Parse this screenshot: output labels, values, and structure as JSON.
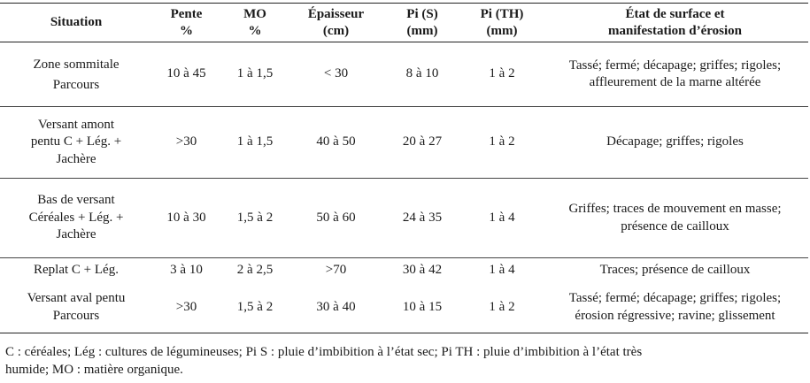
{
  "headers": {
    "situation": "Situation",
    "pente_1": "Pente",
    "pente_2": "%",
    "mo_1": "MO",
    "mo_2": "%",
    "epaisseur_1": "Épaisseur",
    "epaisseur_2": "(cm)",
    "pis_1": "Pi (S)",
    "pis_2": "(mm)",
    "pith_1": "Pi (TH)",
    "pith_2": "(mm)",
    "etat_1": "État de surface et",
    "etat_2": "manifestation d’érosion"
  },
  "rows": [
    {
      "sit_1": "Zone sommitale",
      "sit_2": "Parcours",
      "sit_3": "",
      "pente": "10 à 45",
      "mo": "1 à 1,5",
      "epaisseur": "< 30",
      "pis": "8 à 10",
      "pith": "1 à 2",
      "etat_1": "Tassé; fermé; décapage; griffes; rigoles;",
      "etat_2": "affleurement de la marne altérée"
    },
    {
      "sit_1": "Versant amont",
      "sit_2": "pentu C + Lég. +",
      "sit_3": "Jachère",
      "pente": ">30",
      "mo": "1 à 1,5",
      "epaisseur": "40 à 50",
      "pis": "20 à 27",
      "pith": "1 à 2",
      "etat_1": "Décapage; griffes; rigoles",
      "etat_2": ""
    },
    {
      "sit_1": "Bas de versant",
      "sit_2": "Céréales + Lég. +",
      "sit_3": "Jachère",
      "pente": "10 à 30",
      "mo": "1,5 à 2",
      "epaisseur": "50 à 60",
      "pis": "24 à 35",
      "pith": "1 à 4",
      "etat_1": "Griffes; traces de mouvement en masse;",
      "etat_2": "présence de cailloux"
    },
    {
      "sit_1": "Replat C + Lég.",
      "sit_2": "",
      "sit_3": "",
      "pente": "3 à 10",
      "mo": "2 à 2,5",
      "epaisseur": ">70",
      "pis": "30 à 42",
      "pith": "1 à 4",
      "etat_1": "Traces; présence de cailloux",
      "etat_2": ""
    },
    {
      "sit_1": "Versant aval pentu",
      "sit_2": "Parcours",
      "sit_3": "",
      "pente": ">30",
      "mo": "1,5 à 2",
      "epaisseur": "30 à 40",
      "pis": "10 à 15",
      "pith": "1 à 2",
      "etat_1": "Tassé; fermé; décapage; griffes; rigoles;",
      "etat_2": "érosion régressive; ravine; glissement"
    }
  ],
  "footnote": {
    "line_1": "C : céréales; Lég : cultures de légumineuses; Pi S : pluie d’imbibition à l’état sec; Pi TH : pluie d’imbibition à l’état très",
    "line_2": "humide; MO : matière organique."
  }
}
